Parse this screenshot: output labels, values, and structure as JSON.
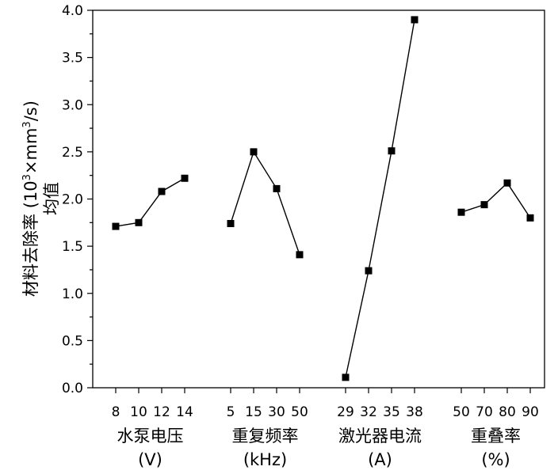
{
  "chart_data": {
    "type": "line",
    "ylabel_line1": "材料去除率 (10",
    "ylabel_sup1": "3",
    "ylabel_mid": "×mm",
    "ylabel_sup2": "3",
    "ylabel_end": "/s)",
    "ylabel_line2": "均值",
    "ylim": [
      0,
      4
    ],
    "yticks": [
      "0.0",
      "0.5",
      "1.0",
      "1.5",
      "2.0",
      "2.5",
      "3.0",
      "3.5",
      "4.0"
    ],
    "groups": [
      {
        "title": "水泵电压",
        "unit": "(V)",
        "x": [
          "8",
          "10",
          "12",
          "14"
        ],
        "values": [
          1.71,
          1.75,
          2.08,
          2.22
        ]
      },
      {
        "title": "重复频率",
        "unit": "(kHz)",
        "x": [
          "5",
          "15",
          "30",
          "50"
        ],
        "values": [
          1.74,
          2.5,
          2.11,
          1.41
        ]
      },
      {
        "title": "激光器电流",
        "unit": "(A)",
        "x": [
          "29",
          "32",
          "35",
          "38"
        ],
        "values": [
          0.11,
          1.24,
          2.51,
          3.9
        ]
      },
      {
        "title": "重叠率",
        "unit": "(%)",
        "x": [
          "50",
          "70",
          "80",
          "90"
        ],
        "values": [
          1.86,
          1.94,
          2.17,
          1.8
        ]
      }
    ],
    "grid": false,
    "marker": "square"
  }
}
